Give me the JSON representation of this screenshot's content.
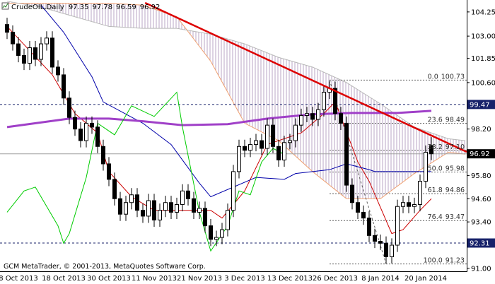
{
  "chart_data": {
    "type": "candlestick",
    "title": "CrudeOIL,Daily",
    "annotation": "GCM MetaTrader, © 2001-2013, MetaQuotes Software Corp.",
    "categories": [
      null,
      null,
      "8 Oct 2013",
      null,
      null,
      null,
      null,
      null,
      null,
      null,
      "18 Oct 2013",
      null,
      null,
      null,
      null,
      null,
      null,
      null,
      "30 Oct 2013",
      null,
      null,
      null,
      null,
      null,
      null,
      null,
      "11 Nov 2013",
      null,
      null,
      null,
      null,
      null,
      null,
      null,
      "21 Nov 2013",
      null,
      null,
      null,
      null,
      null,
      null,
      null,
      "3 Dec 2013",
      null,
      null,
      null,
      null,
      null,
      null,
      null,
      "13 Dec 2013",
      null,
      null,
      null,
      null,
      null,
      null,
      null,
      "26 Dec 2013",
      null,
      null,
      null,
      null,
      null,
      null,
      null,
      "8 Jan 2014",
      null,
      null,
      null,
      null,
      null,
      null,
      null,
      "20 Jan 2014",
      null
    ],
    "open": [
      103.6,
      103.2,
      102.6,
      102.0,
      101.6,
      102.4,
      101.8,
      102.6,
      102.9,
      101.4,
      101.0,
      99.8,
      98.8,
      98.2,
      97.6,
      98.5,
      98.3,
      97.3,
      96.4,
      95.6,
      94.6,
      93.8,
      94.4,
      94.8,
      94.0,
      93.7,
      94.5,
      93.5,
      94.0,
      94.4,
      93.9,
      94.3,
      95.0,
      94.6,
      93.9,
      94.1,
      93.2,
      92.5,
      92.6,
      93.0,
      94.0,
      96.0,
      97.3,
      97.1,
      97.4,
      97.6,
      97.2,
      98.4,
      97.3,
      96.6,
      97.5,
      97.6,
      98.4,
      98.9,
      99.0,
      98.7,
      99.2,
      100.1,
      100.3,
      99.0,
      98.5,
      95.3,
      94.4,
      93.9,
      93.6,
      92.7,
      92.4,
      92.3,
      91.6,
      92.2,
      94.2,
      94.4,
      94.2,
      94.3,
      95.5,
      97.35
    ],
    "high": [
      103.95,
      103.55,
      102.95,
      102.35,
      102.75,
      102.75,
      102.95,
      103.25,
      103.25,
      101.75,
      101.35,
      100.15,
      99.15,
      98.55,
      98.85,
      98.85,
      98.65,
      97.65,
      96.75,
      95.95,
      94.95,
      94.75,
      95.15,
      95.15,
      94.35,
      94.85,
      94.85,
      94.35,
      94.75,
      94.75,
      94.65,
      95.35,
      95.35,
      94.95,
      94.45,
      94.45,
      93.55,
      92.95,
      93.35,
      94.35,
      96.35,
      97.65,
      97.65,
      97.75,
      97.95,
      97.95,
      98.75,
      98.75,
      97.65,
      97.85,
      97.95,
      98.75,
      99.25,
      99.35,
      99.35,
      99.55,
      100.45,
      100.65,
      100.65,
      99.35,
      98.85,
      95.65,
      94.75,
      94.25,
      93.95,
      93.05,
      92.75,
      92.65,
      92.55,
      94.55,
      94.75,
      94.75,
      94.65,
      95.85,
      97.35,
      97.78
    ],
    "low": [
      102.85,
      102.25,
      101.65,
      101.25,
      101.25,
      101.45,
      101.45,
      102.25,
      101.05,
      100.65,
      99.45,
      98.45,
      97.85,
      97.25,
      97.25,
      97.95,
      96.95,
      96.05,
      95.25,
      94.25,
      93.45,
      93.45,
      94.05,
      93.65,
      93.35,
      93.35,
      93.15,
      93.15,
      93.65,
      93.55,
      93.55,
      93.95,
      94.25,
      93.55,
      93.55,
      92.85,
      92.15,
      92.15,
      92.25,
      92.65,
      93.65,
      95.65,
      96.75,
      96.75,
      97.05,
      96.85,
      96.85,
      96.95,
      96.25,
      96.25,
      97.15,
      97.25,
      98.05,
      98.55,
      98.35,
      98.35,
      98.85,
      99.75,
      98.65,
      98.15,
      94.95,
      94.05,
      93.55,
      93.25,
      92.35,
      92.05,
      91.95,
      91.25,
      91.25,
      91.85,
      93.85,
      93.85,
      93.85,
      93.95,
      95.15,
      96.59
    ],
    "close": [
      103.2,
      102.6,
      102.0,
      101.6,
      102.4,
      101.8,
      102.6,
      102.9,
      101.4,
      101.0,
      99.8,
      98.8,
      98.2,
      97.6,
      98.5,
      98.3,
      97.3,
      96.4,
      95.6,
      94.6,
      93.8,
      94.4,
      94.8,
      94.0,
      93.7,
      94.5,
      93.5,
      94.0,
      94.4,
      93.9,
      94.3,
      95.0,
      94.6,
      93.9,
      94.1,
      93.2,
      92.5,
      92.6,
      93.0,
      94.0,
      96.0,
      97.3,
      97.1,
      97.4,
      97.6,
      97.2,
      98.4,
      97.3,
      96.6,
      97.5,
      97.6,
      98.4,
      98.9,
      99.0,
      98.7,
      99.2,
      100.1,
      100.3,
      99.0,
      98.5,
      95.3,
      94.4,
      93.9,
      93.6,
      92.7,
      92.4,
      92.3,
      91.6,
      92.2,
      94.2,
      94.4,
      94.2,
      94.3,
      95.5,
      97.0,
      96.92
    ],
    "candle_colors": {
      "up": "#ffffff",
      "down": "#000000",
      "outline": "#000000"
    },
    "cloud": {
      "color": "#b9a6c4",
      "x": [
        0,
        6,
        12,
        18,
        24,
        30,
        36,
        42,
        48,
        54,
        60,
        66,
        72,
        78,
        81
      ],
      "span_a": {
        "color": "#f0a070",
        "values": [
          104.7,
          104.7,
          104.7,
          104.7,
          104.6,
          104.0,
          101.7,
          98.5,
          97.6,
          96.0,
          94.6,
          94.6,
          95.9,
          97.0,
          96.9
        ]
      },
      "span_b": {
        "color": "#b8b8b8",
        "values": [
          104.8,
          104.5,
          104.0,
          103.5,
          103.4,
          103.4,
          103.1,
          102.6,
          101.9,
          101.4,
          100.6,
          99.5,
          98.3,
          97.7,
          97.6
        ]
      }
    },
    "series": [
      {
        "color": "#cc0000",
        "x": [
          0,
          8,
          12,
          16,
          18,
          22,
          26,
          36,
          38,
          42,
          46,
          52,
          56,
          58,
          62,
          64,
          68,
          70,
          73,
          75
        ],
        "values": [
          103.5,
          101,
          99,
          98,
          96,
          94.7,
          94,
          94,
          93.6,
          95,
          97.4,
          98,
          99,
          99.6,
          96.5,
          95.5,
          92.8,
          93,
          94,
          94.6
        ]
      },
      {
        "color": "#0000aa",
        "x": [
          6,
          10,
          15,
          17,
          24,
          29,
          34,
          36,
          44,
          49,
          51,
          57,
          60,
          64,
          65,
          75
        ],
        "values": [
          104.6,
          103.2,
          100.9,
          99.6,
          98.5,
          97.4,
          95.4,
          94.7,
          95.7,
          95.6,
          95.9,
          96.1,
          96.4,
          96.1,
          96.0,
          96.0
        ]
      },
      {
        "color": "#a040c8",
        "x": [
          0,
          11,
          18,
          24,
          31,
          39,
          46,
          54,
          61,
          69,
          75
        ],
        "values": [
          98.3,
          98.74,
          98.74,
          98.6,
          98.4,
          98.45,
          98.74,
          98.96,
          99.03,
          99.03,
          99.14
        ]
      },
      {
        "color": "#00cc00",
        "x": [
          0,
          3,
          5,
          9,
          10,
          11,
          14,
          16,
          19,
          22,
          26,
          30,
          31,
          34,
          36,
          39,
          41,
          43,
          45,
          47,
          49
        ],
        "values": [
          93.9,
          95.0,
          95.2,
          93.2,
          92.3,
          92.8,
          95.7,
          98.5,
          97.9,
          99.4,
          98.85,
          100.1,
          98.3,
          93.9,
          91.9,
          93.2,
          95.0,
          94.8,
          96.5,
          97.2,
          96.9
        ]
      }
    ],
    "trendline": {
      "color": "#dd0000",
      "x": [
        24.4,
        81.25
      ],
      "values": [
        104.72,
        97.02
      ]
    },
    "fibonacci": {
      "color": "#606060",
      "x": [
        57,
        67
      ],
      "levels": [
        {
          "ratio": "0.0",
          "price": 100.73
        },
        {
          "ratio": "23.6",
          "price": 98.49
        },
        {
          "ratio": "38.2",
          "price": {
            "value": 97.1,
            "label": "97.10"
          }
        },
        {
          "ratio": "50.0",
          "price": 95.98
        },
        {
          "ratio": "61.8",
          "price": 94.86
        },
        {
          "ratio": "76.4",
          "price": 93.47
        },
        {
          "ratio": "100.0",
          "price": 91.23
        }
      ]
    },
    "levels": [
      {
        "value": 99.47,
        "color": "#17226a"
      },
      {
        "value": 92.31,
        "color": "#17226a"
      }
    ],
    "price_line_color": "#000000",
    "ylim": [
      90.85,
      104.72
    ],
    "yticks": [
      104.25,
      {
        "value": 103,
        "label": "103.00"
      },
      101.85,
      {
        "value": 100.6,
        "label": "100.60"
      },
      {
        "value": 98.2,
        "label": "98.20"
      },
      {
        "value": 95.8,
        "label": "95.80"
      },
      {
        "value": 94.6,
        "label": "94.60"
      },
      {
        "value": 93.4,
        "label": "93.40"
      },
      {
        "value": 91,
        "label": "91.00"
      }
    ],
    "grid": false
  }
}
